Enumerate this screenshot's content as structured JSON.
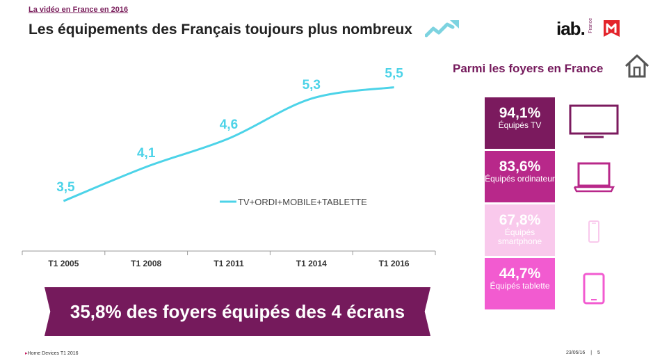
{
  "header": {
    "supertitle": "La vidéo en France en 2016",
    "title": "Les équipements des Français toujours plus nombreux",
    "logo_text": "iab.",
    "logo_sub": "France"
  },
  "chart_data": {
    "type": "line",
    "categories": [
      "T1 2005",
      "T1 2008",
      "T1 2011",
      "T1 2014",
      "T1 2016"
    ],
    "series": [
      {
        "name": "TV+ORDI+MOBILE+TABLETTE",
        "values": [
          3.5,
          4.1,
          4.6,
          5.3,
          5.5
        ],
        "labels": [
          "3,5",
          "4,1",
          "4,6",
          "5,3",
          "5,5"
        ]
      }
    ],
    "legend_position": "center-right",
    "grid": false,
    "line_color": "#4cd3e8"
  },
  "banner": {
    "text": "35,8% des foyers équipés des 4 écrans",
    "color": "#751a5c"
  },
  "households": {
    "title": "Parmi les foyers en France",
    "items": [
      {
        "pct": "94,1%",
        "label": "Équipés TV",
        "color": "#7b1a5e",
        "icon": "tv-icon"
      },
      {
        "pct": "83,6%",
        "label": "Équipés ordinateur",
        "color": "#b8288a",
        "icon": "laptop-icon"
      },
      {
        "pct": "67,8%",
        "label": "Équipés smartphone",
        "color": "#f9c9ec",
        "icon": "smartphone-icon"
      },
      {
        "pct": "44,7%",
        "label": "Équipés tablette",
        "color": "#f25bd0",
        "icon": "tablet-icon"
      }
    ]
  },
  "footer": {
    "source": "Home Devices T1 2016",
    "date": "23/05/16",
    "separator": "|",
    "page": "5"
  }
}
